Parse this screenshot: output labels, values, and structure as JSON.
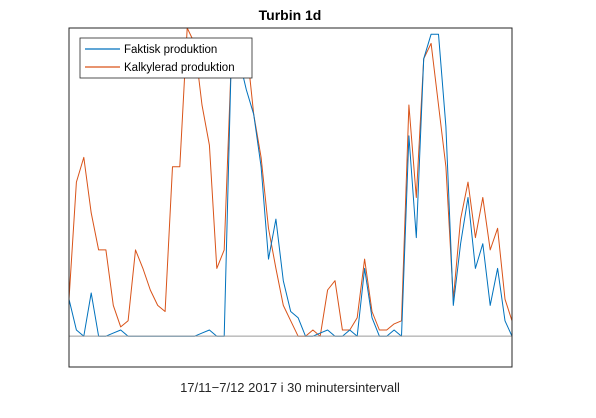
{
  "chart_data": {
    "type": "line",
    "title": "Turbin 1d",
    "xlabel": "17/11−7/12 2017 i 30 minutersintervall",
    "ylabel": "",
    "x_range": [
      1,
      1200
    ],
    "ylim": [
      -0.1,
      1.0
    ],
    "grid": false,
    "legend_position": "top-left",
    "x": [
      1,
      21,
      41,
      61,
      81,
      101,
      121,
      141,
      161,
      181,
      201,
      221,
      241,
      261,
      281,
      301,
      321,
      341,
      361,
      381,
      401,
      421,
      441,
      461,
      481,
      501,
      521,
      541,
      561,
      581,
      601,
      621,
      641,
      661,
      681,
      701,
      721,
      741,
      761,
      781,
      801,
      821,
      841,
      861,
      881,
      901,
      921,
      941,
      961,
      981,
      1001,
      1021,
      1041,
      1061,
      1081,
      1101,
      1121,
      1141,
      1161,
      1181,
      1200
    ],
    "series": [
      {
        "name": "Faktisk produktion",
        "color": "#0072BD",
        "values": [
          0.12,
          0.02,
          0.0,
          0.14,
          0.0,
          0.0,
          0.01,
          0.02,
          0.0,
          0.0,
          0.0,
          0.0,
          0.0,
          0.0,
          0.0,
          0.0,
          0.0,
          0.0,
          0.01,
          0.02,
          0.0,
          0.0,
          0.94,
          0.9,
          0.8,
          0.72,
          0.55,
          0.25,
          0.38,
          0.18,
          0.08,
          0.06,
          0.0,
          0.0,
          0.01,
          0.02,
          0.0,
          0.0,
          0.02,
          0.0,
          0.22,
          0.06,
          0.0,
          0.0,
          0.02,
          0.0,
          0.65,
          0.32,
          0.9,
          0.98,
          0.98,
          0.68,
          0.1,
          0.3,
          0.45,
          0.22,
          0.3,
          0.1,
          0.22,
          0.05,
          0.0
        ]
      },
      {
        "name": "Kalkylerad produktion",
        "color": "#D95319",
        "values": [
          0.12,
          0.5,
          0.58,
          0.4,
          0.28,
          0.28,
          0.1,
          0.03,
          0.05,
          0.28,
          0.22,
          0.15,
          0.1,
          0.08,
          0.55,
          0.55,
          1.0,
          0.95,
          0.75,
          0.62,
          0.22,
          0.28,
          0.92,
          0.88,
          0.95,
          0.72,
          0.58,
          0.35,
          0.22,
          0.1,
          0.05,
          0.0,
          0.0,
          0.02,
          0.0,
          0.15,
          0.18,
          0.02,
          0.02,
          0.06,
          0.25,
          0.08,
          0.02,
          0.02,
          0.04,
          0.05,
          0.75,
          0.45,
          0.9,
          0.95,
          0.75,
          0.55,
          0.12,
          0.38,
          0.5,
          0.32,
          0.45,
          0.28,
          0.35,
          0.12,
          0.05
        ]
      }
    ]
  }
}
